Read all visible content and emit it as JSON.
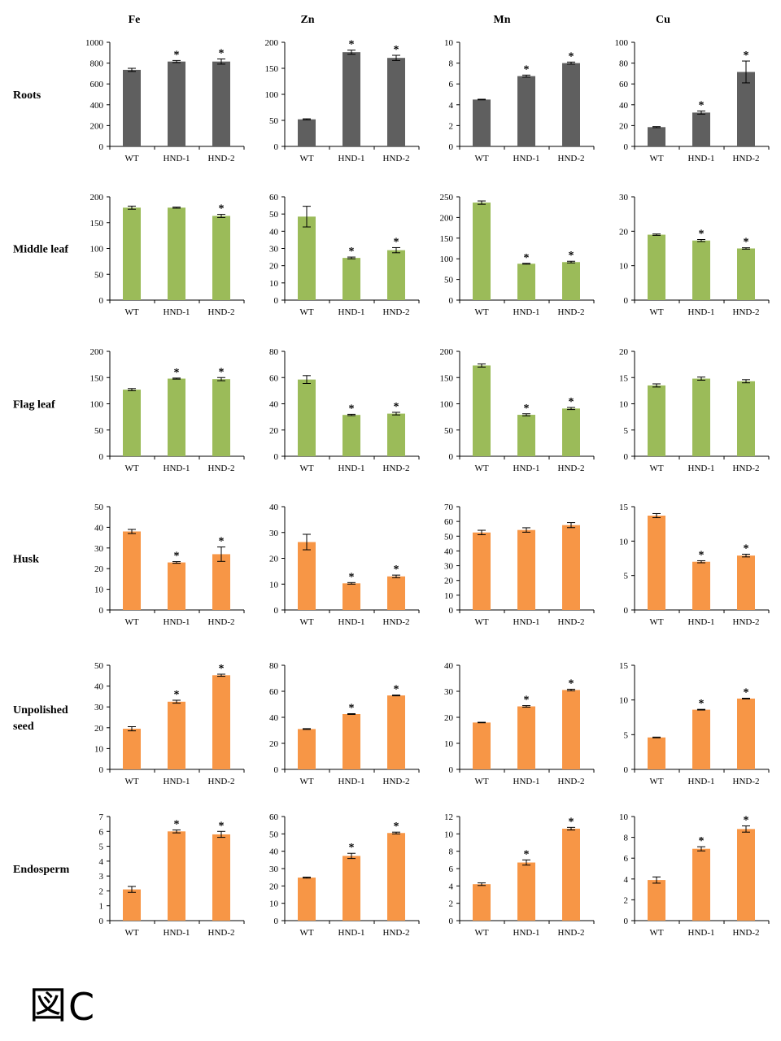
{
  "colors": {
    "roots": "#5f5f5f",
    "leaf": "#9bbb59",
    "seed": "#f79646"
  },
  "figure_label": {
    "glyph": "図",
    "letter": "C"
  },
  "chart_data": {
    "type": "bar",
    "title": "",
    "columns": [
      "Fe",
      "Zn",
      "Mn",
      "Cu"
    ],
    "categories": [
      "WT",
      "HND-1",
      "HND-2"
    ],
    "rows": [
      {
        "label": [
          "Roots"
        ],
        "color_key": "roots",
        "panels": [
          {
            "element": "Fe",
            "ylim": [
              0,
              1000
            ],
            "yticks": [
              0,
              200,
              400,
              600,
              800,
              1000
            ],
            "tick_decimals": 0,
            "values": [
              735,
              815,
              815
            ],
            "errors": [
              15,
              10,
              25
            ],
            "significant": [
              false,
              true,
              true
            ]
          },
          {
            "element": "Zn",
            "ylim": [
              0,
              200
            ],
            "yticks": [
              0,
              50,
              100,
              150,
              200
            ],
            "tick_decimals": 0,
            "values": [
              52,
              181,
              170
            ],
            "errors": [
              1,
              4,
              5
            ],
            "significant": [
              false,
              true,
              true
            ]
          },
          {
            "element": "Mn",
            "ylim": [
              0,
              10
            ],
            "yticks": [
              0,
              2,
              4,
              6,
              8,
              10
            ],
            "tick_decimals": 0,
            "values": [
              4.5,
              6.75,
              8.0
            ],
            "errors": [
              0.03,
              0.1,
              0.1
            ],
            "significant": [
              false,
              true,
              true
            ]
          },
          {
            "element": "Cu",
            "ylim": [
              0,
              100
            ],
            "yticks": [
              0,
              20,
              40,
              60,
              80,
              100
            ],
            "tick_decimals": 0,
            "values": [
              18.5,
              32.5,
              71.5
            ],
            "errors": [
              0.5,
              1.5,
              10.5
            ],
            "significant": [
              false,
              true,
              true
            ]
          }
        ]
      },
      {
        "label": [
          "Middle leaf"
        ],
        "color_key": "leaf",
        "panels": [
          {
            "element": "Fe",
            "ylim": [
              0,
              200
            ],
            "yticks": [
              0,
              50,
              100,
              150,
              200
            ],
            "tick_decimals": 0,
            "values": [
              179,
              179,
              163
            ],
            "errors": [
              3,
              1,
              3
            ],
            "significant": [
              false,
              false,
              true
            ]
          },
          {
            "element": "Zn",
            "ylim": [
              0,
              60
            ],
            "yticks": [
              0,
              10,
              20,
              30,
              40,
              50,
              60
            ],
            "tick_decimals": 0,
            "values": [
              48.5,
              24.5,
              29
            ],
            "errors": [
              6,
              0.5,
              1.5
            ],
            "significant": [
              false,
              true,
              true
            ]
          },
          {
            "element": "Mn",
            "ylim": [
              0,
              250
            ],
            "yticks": [
              0,
              50,
              100,
              150,
              200,
              250
            ],
            "tick_decimals": 0,
            "values": [
              236,
              88,
              92
            ],
            "errors": [
              4,
              1,
              2
            ],
            "significant": [
              false,
              true,
              true
            ]
          },
          {
            "element": "Cu",
            "ylim": [
              0,
              30
            ],
            "yticks": [
              0,
              10,
              20,
              30
            ],
            "tick_decimals": 0,
            "values": [
              19,
              17.3,
              15
            ],
            "errors": [
              0.2,
              0.3,
              0.2
            ],
            "significant": [
              false,
              true,
              true
            ]
          }
        ]
      },
      {
        "label": [
          "Flag leaf"
        ],
        "color_key": "leaf",
        "panels": [
          {
            "element": "Fe",
            "ylim": [
              0,
              200
            ],
            "yticks": [
              0,
              50,
              100,
              150,
              200
            ],
            "tick_decimals": 0,
            "values": [
              127,
              148,
              147
            ],
            "errors": [
              2,
              1,
              3
            ],
            "significant": [
              false,
              true,
              true
            ]
          },
          {
            "element": "Zn",
            "ylim": [
              0,
              80
            ],
            "yticks": [
              0,
              20,
              40,
              60,
              80
            ],
            "tick_decimals": 0,
            "values": [
              58.5,
              31.5,
              32.5
            ],
            "errors": [
              3,
              0.5,
              1
            ],
            "significant": [
              false,
              true,
              true
            ]
          },
          {
            "element": "Mn",
            "ylim": [
              0,
              200
            ],
            "yticks": [
              0,
              50,
              100,
              150,
              200
            ],
            "tick_decimals": 0,
            "values": [
              173,
              79,
              91
            ],
            "errors": [
              3,
              2,
              2
            ],
            "significant": [
              false,
              true,
              true
            ]
          },
          {
            "element": "Cu",
            "ylim": [
              0,
              20
            ],
            "yticks": [
              0,
              5,
              10,
              15,
              20
            ],
            "tick_decimals": 0,
            "values": [
              13.5,
              14.8,
              14.3
            ],
            "errors": [
              0.3,
              0.3,
              0.3
            ],
            "significant": [
              false,
              false,
              false
            ]
          }
        ]
      },
      {
        "label": [
          "Husk"
        ],
        "color_key": "seed",
        "panels": [
          {
            "element": "Fe",
            "ylim": [
              0,
              50
            ],
            "yticks": [
              0,
              10,
              20,
              30,
              40,
              50
            ],
            "tick_decimals": 0,
            "values": [
              38,
              23,
              27
            ],
            "errors": [
              1,
              0.4,
              3.5
            ],
            "significant": [
              false,
              true,
              true
            ]
          },
          {
            "element": "Zn",
            "ylim": [
              0,
              40
            ],
            "yticks": [
              0,
              10,
              20,
              30,
              40
            ],
            "tick_decimals": 0,
            "values": [
              26.3,
              10.3,
              13
            ],
            "errors": [
              3,
              0.3,
              0.5
            ],
            "significant": [
              false,
              true,
              true
            ]
          },
          {
            "element": "Mn",
            "ylim": [
              0,
              70
            ],
            "yticks": [
              0,
              10,
              20,
              30,
              40,
              50,
              60,
              70
            ],
            "tick_decimals": 0,
            "values": [
              52.5,
              54.2,
              57.5
            ],
            "errors": [
              1.5,
              1.5,
              1.7
            ],
            "significant": [
              false,
              false,
              false
            ]
          },
          {
            "element": "Cu",
            "ylim": [
              0,
              15
            ],
            "yticks": [
              0,
              5,
              10,
              15
            ],
            "tick_decimals": 0,
            "values": [
              13.7,
              7.0,
              7.9
            ],
            "errors": [
              0.3,
              0.15,
              0.2
            ],
            "significant": [
              false,
              true,
              true
            ]
          }
        ]
      },
      {
        "label": [
          "Unpolished",
          "seed"
        ],
        "color_key": "seed",
        "panels": [
          {
            "element": "Fe",
            "ylim": [
              0,
              50
            ],
            "yticks": [
              0,
              10,
              20,
              30,
              40,
              50
            ],
            "tick_decimals": 0,
            "values": [
              19.5,
              32.5,
              45.2
            ],
            "errors": [
              1,
              0.7,
              0.5
            ],
            "significant": [
              false,
              true,
              true
            ]
          },
          {
            "element": "Zn",
            "ylim": [
              0,
              80
            ],
            "yticks": [
              0,
              20,
              40,
              60,
              80
            ],
            "tick_decimals": 0,
            "values": [
              31,
              42.5,
              56.8
            ],
            "errors": [
              0.3,
              0.3,
              0.3
            ],
            "significant": [
              false,
              true,
              true
            ]
          },
          {
            "element": "Mn",
            "ylim": [
              0,
              40
            ],
            "yticks": [
              0,
              10,
              20,
              30,
              40
            ],
            "tick_decimals": 0,
            "values": [
              18,
              24.2,
              30.5
            ],
            "errors": [
              0.1,
              0.3,
              0.3
            ],
            "significant": [
              false,
              true,
              true
            ]
          },
          {
            "element": "Cu",
            "ylim": [
              0,
              15
            ],
            "yticks": [
              0,
              5,
              10,
              15
            ],
            "tick_decimals": 0,
            "values": [
              4.6,
              8.6,
              10.2
            ],
            "errors": [
              0.05,
              0.05,
              0.05
            ],
            "significant": [
              false,
              true,
              true
            ]
          }
        ]
      },
      {
        "label": [
          "Endosperm"
        ],
        "color_key": "seed",
        "panels": [
          {
            "element": "Fe",
            "ylim": [
              0,
              7
            ],
            "yticks": [
              0,
              1,
              2,
              3,
              4,
              5,
              6,
              7
            ],
            "tick_decimals": 0,
            "values": [
              2.1,
              6.0,
              5.8
            ],
            "errors": [
              0.2,
              0.1,
              0.2
            ],
            "significant": [
              false,
              true,
              true
            ]
          },
          {
            "element": "Zn",
            "ylim": [
              0,
              60
            ],
            "yticks": [
              0,
              10,
              20,
              30,
              40,
              50,
              60
            ],
            "tick_decimals": 0,
            "values": [
              24.8,
              37.3,
              50.5
            ],
            "errors": [
              0.3,
              1.5,
              0.5
            ],
            "significant": [
              false,
              true,
              true
            ]
          },
          {
            "element": "Mn",
            "ylim": [
              0,
              12
            ],
            "yticks": [
              0,
              2,
              4,
              6,
              8,
              10,
              12
            ],
            "tick_decimals": 0,
            "values": [
              4.2,
              6.7,
              10.6
            ],
            "errors": [
              0.15,
              0.3,
              0.15
            ],
            "significant": [
              false,
              true,
              true
            ]
          },
          {
            "element": "Cu",
            "ylim": [
              0,
              10
            ],
            "yticks": [
              0,
              2,
              4,
              6,
              8,
              10
            ],
            "tick_decimals": 0,
            "values": [
              3.9,
              6.9,
              8.8
            ],
            "errors": [
              0.3,
              0.2,
              0.3
            ],
            "significant": [
              false,
              true,
              true
            ]
          }
        ]
      }
    ],
    "significance_marker": "*"
  }
}
